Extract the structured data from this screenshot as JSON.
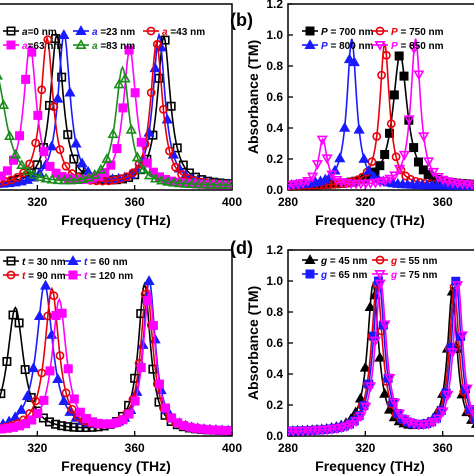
{
  "chart_data": [
    {
      "panel": "(a)",
      "type": "line",
      "xlabel": "Frequency (THz)",
      "ylabel": "",
      "xlim": [
        280,
        400
      ],
      "ylim": [
        0,
        1.2
      ],
      "xticks": [
        320,
        360,
        400
      ],
      "yticks": [],
      "legend_position": "top",
      "series": [
        {
          "name": "a=0 nm",
          "legend": {
            "sym": "a",
            "val": "=0 nm"
          },
          "color": "#000000",
          "marker": "square-open",
          "peaks": [
            [
              328,
              0.97,
              3.2
            ],
            [
              372,
              0.96,
              3.2
            ]
          ]
        },
        {
          "name": "a=23 nm",
          "legend": {
            "sym": "a",
            "val": " =23 nm"
          },
          "color": "#1a1aff",
          "marker": "triangle-filled",
          "peaks": [
            [
              331,
              0.98,
              3.0
            ],
            [
              370,
              0.97,
              3.0
            ]
          ]
        },
        {
          "name": "a=43 nm",
          "legend": {
            "sym": "a",
            "val": " =43 nm"
          },
          "color": "#e8000b",
          "marker": "circle-open",
          "peaks": [
            [
              324,
              0.95,
              3.0
            ],
            [
              369,
              0.92,
              3.0
            ]
          ]
        },
        {
          "name": "a=63 nm",
          "legend": {
            "sym": "a",
            "val": "=63 nm"
          },
          "color": "#ff00ff",
          "marker": "square-filled",
          "peaks": [
            [
              317,
              0.9,
              3.2
            ],
            [
              358,
              0.88,
              3.2
            ]
          ]
        },
        {
          "name": "a=83 nm",
          "legend": {
            "sym": "a",
            "val": " =83 nm"
          },
          "color": "#1a8c1a",
          "marker": "triangle-open",
          "peaks": [
            [
              303,
              0.72,
              5.0
            ],
            [
              355,
              0.76,
              3.4
            ]
          ]
        }
      ]
    },
    {
      "panel": "(b)",
      "type": "line",
      "xlabel": "Frequency (THz)",
      "ylabel": "Absorbance (TM)",
      "xlim": [
        280,
        400
      ],
      "ylim": [
        0,
        1.2
      ],
      "xticks": [
        280,
        320,
        360
      ],
      "yticks": [
        "0.0",
        "0.2",
        "0.4",
        "0.6",
        "0.8",
        "1.0",
        "1.2"
      ],
      "legend_position": "top",
      "series": [
        {
          "name": "P = 700 nm",
          "legend": {
            "sym": "P",
            "val": " = 700 nm"
          },
          "color": "#000000",
          "marker": "square-filled",
          "peaks": [
            [
              338,
              0.85,
              4.5
            ]
          ]
        },
        {
          "name": "P = 750 nm",
          "legend": {
            "sym": "P",
            "val": " = 750 nm"
          },
          "color": "#e8000b",
          "marker": "circle-open",
          "peaks": [
            [
              330,
              0.92,
              3.0
            ]
          ]
        },
        {
          "name": "P = 800 nm",
          "legend": {
            "sym": "P",
            "val": " = 800 nm"
          },
          "color": "#1a1aff",
          "marker": "triangle-filled",
          "peaks": [
            [
              313,
              0.95,
              3.0
            ]
          ]
        },
        {
          "name": "P = 850 nm",
          "legend": {
            "sym": "P",
            "val": " = 850 nm"
          },
          "color": "#ff00ff",
          "marker": "triangle-down-open",
          "peaks": [
            [
              298,
              0.3,
              2.6
            ],
            [
              346,
              0.95,
              3.0
            ]
          ]
        }
      ]
    },
    {
      "panel": "(c)",
      "type": "line",
      "xlabel": "Frequency (THz)",
      "ylabel": "",
      "xlim": [
        280,
        400
      ],
      "ylim": [
        0,
        1.2
      ],
      "xticks": [
        320,
        360,
        400
      ],
      "yticks": [],
      "legend_position": "top-left",
      "series": [
        {
          "name": "t = 30 nm",
          "legend": {
            "sym": "t",
            "val": " = 30 nm"
          },
          "color": "#000000",
          "marker": "square-open",
          "peaks": [
            [
              311,
              0.8,
              4.0
            ],
            [
              364,
              0.95,
              3.0
            ]
          ]
        },
        {
          "name": "t = 60 nm",
          "legend": {
            "sym": "t",
            "val": " = 60 nm"
          },
          "color": "#1a1aff",
          "marker": "triangle-filled",
          "peaks": [
            [
              323,
              0.95,
              4.0
            ],
            [
              366,
              0.97,
              3.0
            ]
          ]
        },
        {
          "name": "t = 90 nm",
          "legend": {
            "sym": "t",
            "val": " = 90 nm"
          },
          "color": "#e8000b",
          "marker": "circle-open",
          "peaks": [
            [
              326,
              0.92,
              3.5
            ],
            [
              365,
              0.93,
              3.0
            ]
          ]
        },
        {
          "name": "t = 120 nm",
          "legend": {
            "sym": "t",
            "val": " = 120 nm"
          },
          "color": "#ff00ff",
          "marker": "square-filled",
          "peaks": [
            [
              329,
              0.85,
              3.5
            ],
            [
              366,
              0.9,
              3.0
            ]
          ]
        }
      ]
    },
    {
      "panel": "(d)",
      "type": "line",
      "xlabel": "Frequency (THz)",
      "ylabel": "Absorbance (TM)",
      "xlim": [
        280,
        400
      ],
      "ylim": [
        0,
        1.2
      ],
      "xticks": [
        280,
        320,
        360
      ],
      "yticks": [
        "0.0",
        "0.2",
        "0.4",
        "0.6",
        "0.8",
        "1.0",
        "1.2"
      ],
      "legend_position": "top",
      "series": [
        {
          "name": "g = 45 nm",
          "legend": {
            "sym": "g",
            "val": " = 45 nm"
          },
          "color": "#000000",
          "marker": "triangle-filled",
          "peaks": [
            [
              324,
              0.95,
              3.5
            ],
            [
              365,
              0.9,
              3.0
            ]
          ]
        },
        {
          "name": "g = 55 nm",
          "legend": {
            "sym": "g",
            "val": " = 55 nm"
          },
          "color": "#e8000b",
          "marker": "circle-open",
          "peaks": [
            [
              326,
              0.95,
              3.5
            ],
            [
              366,
              0.93,
              3.0
            ]
          ]
        },
        {
          "name": "g = 65 nm",
          "legend": {
            "sym": "g",
            "val": " = 65 nm"
          },
          "color": "#1a1aff",
          "marker": "square-filled",
          "peaks": [
            [
              327,
              0.98,
              3.5
            ],
            [
              367,
              0.97,
              3.0
            ]
          ]
        },
        {
          "name": "g = 75 nm",
          "legend": {
            "sym": "g",
            "val": " = 75 nm"
          },
          "color": "#ff00ff",
          "marker": "triangle-down-open",
          "peaks": [
            [
              328,
              0.96,
              3.5
            ],
            [
              368,
              0.95,
              3.0
            ]
          ]
        }
      ]
    }
  ]
}
